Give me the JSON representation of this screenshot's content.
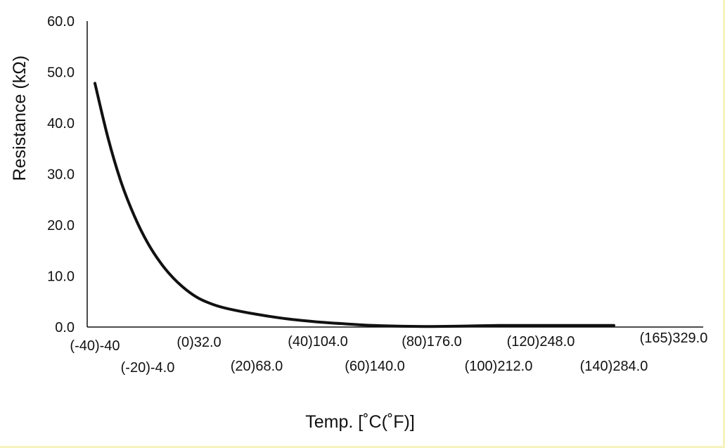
{
  "chart_data": {
    "type": "line",
    "title": "",
    "xlabel": "Temp. [˚C(˚F)]",
    "ylabel": "Resistance (kΩ)",
    "y_ticks": [
      "0.0",
      "10.0",
      "20.0",
      "30.0",
      "40.0",
      "50.0",
      "60.0"
    ],
    "ylim": [
      0,
      60
    ],
    "x_tick_labels": [
      {
        "x": -40,
        "label": "(-40)-40"
      },
      {
        "x": -20,
        "label": "(-20)-4.0"
      },
      {
        "x": 0,
        "label": "(0)32.0"
      },
      {
        "x": 20,
        "label": "(20)68.0"
      },
      {
        "x": 40,
        "label": "(40)104.0"
      },
      {
        "x": 60,
        "label": "(60)140.0"
      },
      {
        "x": 80,
        "label": "(80)176.0"
      },
      {
        "x": 100,
        "label": "(100)212.0"
      },
      {
        "x": 120,
        "label": "(120)248.0"
      },
      {
        "x": 140,
        "label": "(140)284.0"
      },
      {
        "x": 165,
        "label": "(165)329.0"
      }
    ],
    "series": [
      {
        "values": [
          {
            "x": -40,
            "y": 47.8
          },
          {
            "x": -35,
            "y": 37.0
          },
          {
            "x": -30,
            "y": 28.3
          },
          {
            "x": -25,
            "y": 21.7
          },
          {
            "x": -20,
            "y": 16.5
          },
          {
            "x": -15,
            "y": 12.6
          },
          {
            "x": -10,
            "y": 9.6
          },
          {
            "x": -5,
            "y": 7.3
          },
          {
            "x": 0,
            "y": 5.6
          },
          {
            "x": 5,
            "y": 4.4
          },
          {
            "x": 10,
            "y": 3.6
          },
          {
            "x": 20,
            "y": 2.5
          },
          {
            "x": 30,
            "y": 1.6
          },
          {
            "x": 40,
            "y": 1.0
          },
          {
            "x": 50,
            "y": 0.6
          },
          {
            "x": 60,
            "y": 0.3
          },
          {
            "x": 70,
            "y": 0.15
          },
          {
            "x": 80,
            "y": 0.1
          },
          {
            "x": 90,
            "y": 0.2
          },
          {
            "x": 100,
            "y": 0.3
          },
          {
            "x": 110,
            "y": 0.3
          },
          {
            "x": 120,
            "y": 0.3
          },
          {
            "x": 130,
            "y": 0.3
          },
          {
            "x": 140,
            "y": 0.3
          }
        ]
      }
    ],
    "grid": false,
    "colors": {
      "line": "#111111",
      "axes": "#111111",
      "background": "#ffffff",
      "border": "#f7f3bd"
    }
  }
}
